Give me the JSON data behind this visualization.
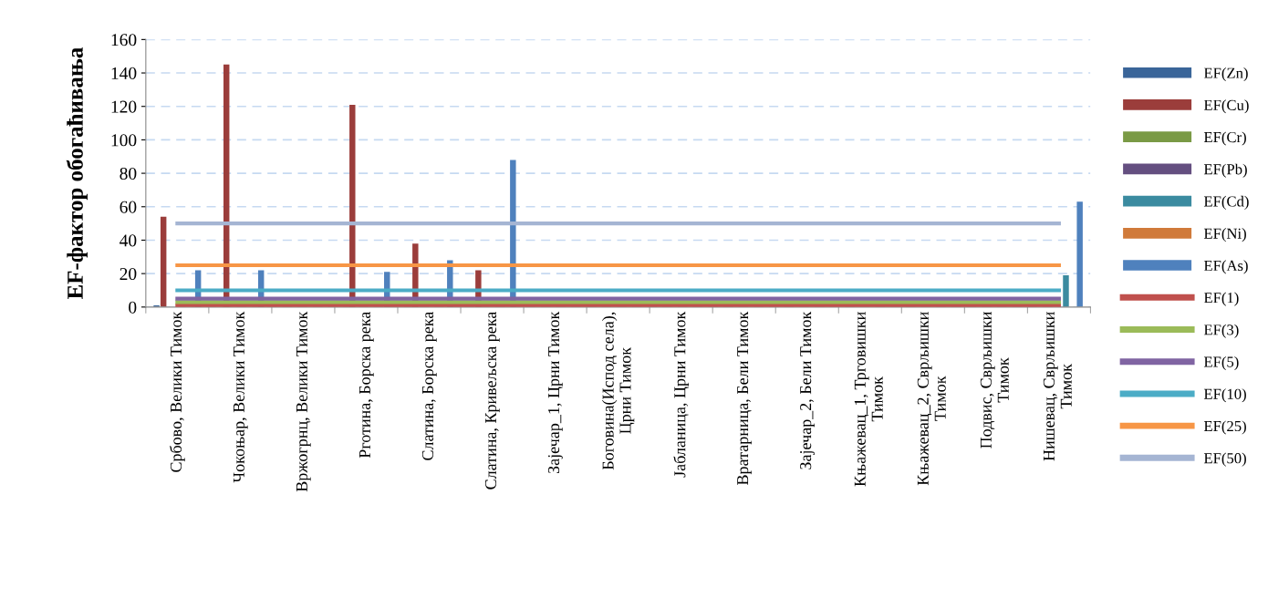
{
  "chart_data": {
    "type": "bar",
    "ylabel": "EF-фактор обогаћивања",
    "categories": [
      "Србово, Велики Тимок",
      "Чокоњар, Велики Тимок",
      "Вржогрнц, Велики Тимок",
      "Рготина, Борска река",
      "Слатина, Борска река",
      "Слатина, Кривељска река",
      "Зајечар_1, Црни Тимок",
      "Боговина(Испод села),\nЦрни Тимок",
      "Јабланица, Црни Тимок",
      "Вратарница, Бели Тимок",
      "Зајечар_2, Бели Тимок",
      "Књажевац_1, Трговишки\nТимок",
      "Књажевац_2, Сврљишки\nТимок",
      "Подвис, Сврљишки\nТимок",
      "Нишевац, Сврљишки\nТимок"
    ],
    "series": [
      {
        "name": "EF(Zn)",
        "color": "#3a6599",
        "values": [
          1,
          null,
          null,
          null,
          null,
          null,
          null,
          null,
          null,
          null,
          null,
          null,
          null,
          null,
          null
        ]
      },
      {
        "name": "EF(Cu)",
        "color": "#9b3d3b",
        "values": [
          54,
          145,
          null,
          121,
          38,
          22,
          null,
          null,
          null,
          null,
          null,
          null,
          null,
          null,
          null
        ]
      },
      {
        "name": "EF(Cr)",
        "color": "#7a9a45",
        "values": [
          null,
          null,
          null,
          null,
          null,
          null,
          null,
          null,
          null,
          null,
          null,
          null,
          null,
          null,
          null
        ]
      },
      {
        "name": "EF(Pb)",
        "color": "#644f80",
        "values": [
          null,
          null,
          null,
          null,
          null,
          null,
          null,
          null,
          null,
          null,
          null,
          null,
          null,
          null,
          null
        ]
      },
      {
        "name": "EF(Cd)",
        "color": "#3b8ba0",
        "values": [
          null,
          null,
          null,
          null,
          null,
          null,
          null,
          null,
          null,
          null,
          null,
          null,
          null,
          null,
          19
        ]
      },
      {
        "name": "EF(Ni)",
        "color": "#d07a3a",
        "values": [
          null,
          null,
          null,
          null,
          null,
          null,
          null,
          null,
          null,
          null,
          null,
          null,
          null,
          null,
          null
        ]
      },
      {
        "name": "EF(As)",
        "color": "#4f81bd",
        "values": [
          22,
          22,
          null,
          21,
          28,
          88,
          null,
          null,
          null,
          null,
          null,
          null,
          null,
          null,
          63
        ]
      },
      {
        "name": "EF(1)",
        "type": "line",
        "color": "#c0504d",
        "values": [
          1,
          1,
          1,
          1,
          1,
          1,
          1,
          1,
          1,
          1,
          1,
          1,
          1,
          1,
          1
        ]
      },
      {
        "name": "EF(3)",
        "type": "line",
        "color": "#9bbb59",
        "values": [
          3,
          3,
          3,
          3,
          3,
          3,
          3,
          3,
          3,
          3,
          3,
          3,
          3,
          3,
          3
        ]
      },
      {
        "name": "EF(5)",
        "type": "line",
        "color": "#8064a2",
        "values": [
          5,
          5,
          5,
          5,
          5,
          5,
          5,
          5,
          5,
          5,
          5,
          5,
          5,
          5,
          5
        ]
      },
      {
        "name": "EF(10)",
        "type": "line",
        "color": "#4bacc6",
        "values": [
          10,
          10,
          10,
          10,
          10,
          10,
          10,
          10,
          10,
          10,
          10,
          10,
          10,
          10,
          10
        ]
      },
      {
        "name": "EF(25)",
        "type": "line",
        "color": "#f79646",
        "values": [
          25,
          25,
          25,
          25,
          25,
          25,
          25,
          25,
          25,
          25,
          25,
          25,
          25,
          25,
          25
        ]
      },
      {
        "name": "EF(50)",
        "type": "line",
        "color": "#a5b5d3",
        "values": [
          50,
          50,
          50,
          50,
          50,
          50,
          50,
          50,
          50,
          50,
          50,
          50,
          50,
          50,
          50
        ]
      }
    ],
    "ylim": [
      0,
      160
    ],
    "yticks": [
      0,
      20,
      40,
      60,
      80,
      100,
      120,
      140,
      160
    ],
    "grid": "y",
    "legend": "right",
    "line_style": "solid",
    "marker": "none"
  }
}
